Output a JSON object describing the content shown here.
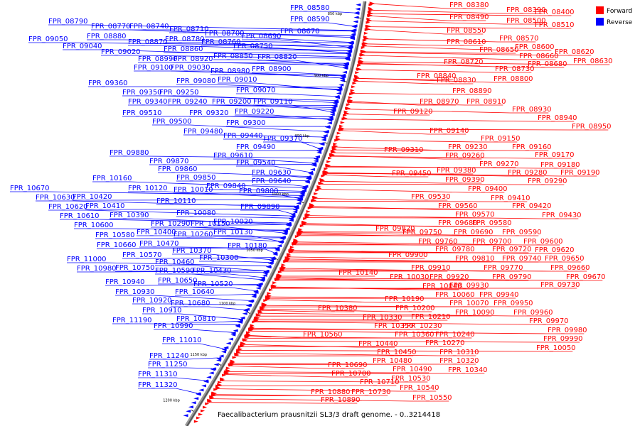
{
  "caption": "Faecalibacterium prausnitzii SL3/3 draft genome. - 0..3214418",
  "legend": [
    {
      "label": "Forward",
      "color": "#ff0000"
    },
    {
      "label": "Reverse",
      "color": "#0000ff"
    }
  ],
  "ticks": [
    "850 kbp",
    "900 kbp",
    "950 kbp",
    "1000 kbp",
    "1050 kbp",
    "1100 kbp",
    "1150 kbp",
    "1200 kbp"
  ],
  "forward_labels": [
    "FPR_08380",
    "FPR_08390",
    "FPR_08400",
    "FPR_08490",
    "FPR_08500",
    "FPR_08510",
    "FPR_08550",
    "FPR_08570",
    "FPR_08610",
    "FPR_08600",
    "FPR_08620",
    "FPR_08650",
    "FPR_08660",
    "FPR_08630",
    "FPR_08720",
    "FPR_08680",
    "FPR_08730",
    "FPR_08840",
    "FPR_08800",
    "FPR_08830",
    "FPR_08890",
    "FPR_08970",
    "FPR_08910",
    "FPR_09120",
    "FPR_08930",
    "FPR_08940",
    "FPR_08950",
    "FPR_09140",
    "FPR_09150",
    "FPR_09160",
    "FPR_09230",
    "FPR_09170",
    "FPR_09310",
    "FPR_09260",
    "FPR_09180",
    "FPR_09270",
    "FPR_09190",
    "FPR_09450",
    "FPR_09380",
    "FPR_09280",
    "FPR_09390",
    "FPR_09290",
    "FPR_09400",
    "FPR_09530",
    "FPR_09410",
    "FPR_09560",
    "FPR_09420",
    "FPR_09570",
    "FPR_09430",
    "FPR_09580",
    "FPR_09820",
    "FPR_09680",
    "FPR_09750",
    "FPR_09690",
    "FPR_09590",
    "FPR_09760",
    "FPR_09700",
    "FPR_09600",
    "FPR_09780",
    "FPR_09720",
    "FPR_09620",
    "FPR_09900",
    "FPR_09810",
    "FPR_09740",
    "FPR_09650",
    "FPR_09910",
    "FPR_09770",
    "FPR_09660",
    "FPR_10140",
    "FPR_10030",
    "FPR_09920",
    "FPR_09790",
    "FPR_09670",
    "FPR_09930",
    "FPR_09730",
    "FPR_10040",
    "FPR_10060",
    "FPR_09940",
    "FPR_10190",
    "FPR_10070",
    "FPR_09950",
    "FPR_10200",
    "FPR_10380",
    "FPR_10090",
    "FPR_09960",
    "FPR_10210",
    "FPR_10330",
    "FPR_09970",
    "FPR_10350",
    "FPR_10230",
    "FPR_09980",
    "FPR_10360",
    "FPR_10240",
    "FPR_10560",
    "FPR_09990",
    "FPR_10270",
    "FPR_10440",
    "FPR_10050",
    "FPR_10450",
    "FPR_10310",
    "FPR_10480",
    "FPR_10320",
    "FPR_10690",
    "FPR_10490",
    "FPR_10340",
    "FPR_10700",
    "FPR_10530",
    "FPR_10710",
    "FPR_10540",
    "FPR_10880",
    "FPR_10730",
    "FPR_10550",
    "FPR_10890"
  ],
  "reverse_labels": [
    "FPR_08580",
    "FPR_08590",
    "FPR_08790",
    "FPR_08770",
    "FPR_08740",
    "FPR_08710",
    "FPR_08700",
    "FPR_08690",
    "FPR_08670",
    "FPR_08880",
    "FPR_08780",
    "FPR_08760",
    "FPR_08750",
    "FPR_09050",
    "FPR_08870",
    "FPR_09040",
    "FPR_08860",
    "FPR_09020",
    "FPR_08850",
    "FPR_08820",
    "FPR_08990",
    "FPR_08920",
    "FPR_09100",
    "FPR_09030",
    "FPR_08980",
    "FPR_08900",
    "FPR_09080",
    "FPR_09010",
    "FPR_09360",
    "FPR_09070",
    "FPR_09350",
    "FPR_09250",
    "FPR_09340",
    "FPR_09240",
    "FPR_09200",
    "FPR_09110",
    "FPR_09510",
    "FPR_09320",
    "FPR_09220",
    "FPR_09500",
    "FPR_09300",
    "FPR_09480",
    "FPR_09440",
    "FPR_09370",
    "FPR_09490",
    "FPR_09880",
    "FPR_09610",
    "FPR_09540",
    "FPR_09870",
    "FPR_09630",
    "FPR_09860",
    "FPR_10160",
    "FPR_09850",
    "FPR_09640",
    "FPR_10670",
    "FPR_10120",
    "FPR_10010",
    "FPR_09840",
    "FPR_09800",
    "FPR_10630",
    "FPR_10420",
    "FPR_10110",
    "FPR_09890",
    "FPR_10620",
    "FPR_10410",
    "FPR_10080",
    "FPR_10610",
    "FPR_10390",
    "FPR_10020",
    "FPR_10600",
    "FPR_10290",
    "FPR_10150",
    "FPR_10580",
    "FPR_10400",
    "FPR_10260",
    "FPR_10130",
    "FPR_10660",
    "FPR_10470",
    "FPR_10180",
    "FPR_10370",
    "FPR_10570",
    "FPR_10300",
    "FPR_11000",
    "FPR_10460",
    "FPR_10980",
    "FPR_10750",
    "FPR_10430",
    "FPR_10590",
    "FPR_10940",
    "FPR_10650",
    "FPR_10520",
    "FPR_10930",
    "FPR_10640",
    "FPR_10920",
    "FPR_10680",
    "FPR_10910",
    "FPR_10810",
    "FPR_11190",
    "FPR_10990",
    "FPR_11010",
    "FPR_11240",
    "FPR_11250",
    "FPR_11310",
    "FPR_11320"
  ]
}
